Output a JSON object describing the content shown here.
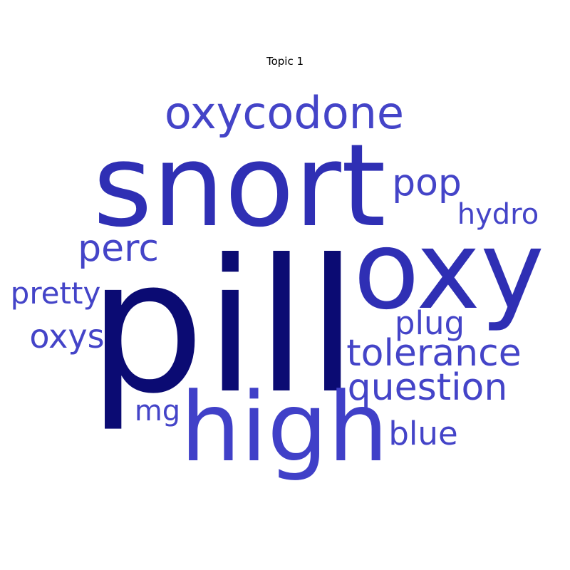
{
  "chart_data": {
    "type": "wordcloud",
    "title": "Topic 1",
    "words": [
      {
        "text": "pill",
        "weight": 1.0,
        "color": "#0b0b73"
      },
      {
        "text": "snort",
        "weight": 0.82,
        "color": "#2f2fb4"
      },
      {
        "text": "oxy",
        "weight": 0.78,
        "color": "#2f2fb4"
      },
      {
        "text": "high",
        "weight": 0.72,
        "color": "#4040c8"
      },
      {
        "text": "oxycodone",
        "weight": 0.36,
        "color": "#4444c8"
      },
      {
        "text": "pop",
        "weight": 0.3,
        "color": "#4444c8"
      },
      {
        "text": "perc",
        "weight": 0.3,
        "color": "#4444c8"
      },
      {
        "text": "tolerance",
        "weight": 0.29,
        "color": "#4444c8"
      },
      {
        "text": "question",
        "weight": 0.28,
        "color": "#4444c8"
      },
      {
        "text": "oxys",
        "weight": 0.26,
        "color": "#4444c8"
      },
      {
        "text": "pretty",
        "weight": 0.24,
        "color": "#4444c8"
      },
      {
        "text": "plug",
        "weight": 0.24,
        "color": "#4444c8"
      },
      {
        "text": "blue",
        "weight": 0.24,
        "color": "#4444c8"
      },
      {
        "text": "hydro",
        "weight": 0.22,
        "color": "#4444c8"
      },
      {
        "text": "mg",
        "weight": 0.2,
        "color": "#4444c8"
      }
    ]
  }
}
